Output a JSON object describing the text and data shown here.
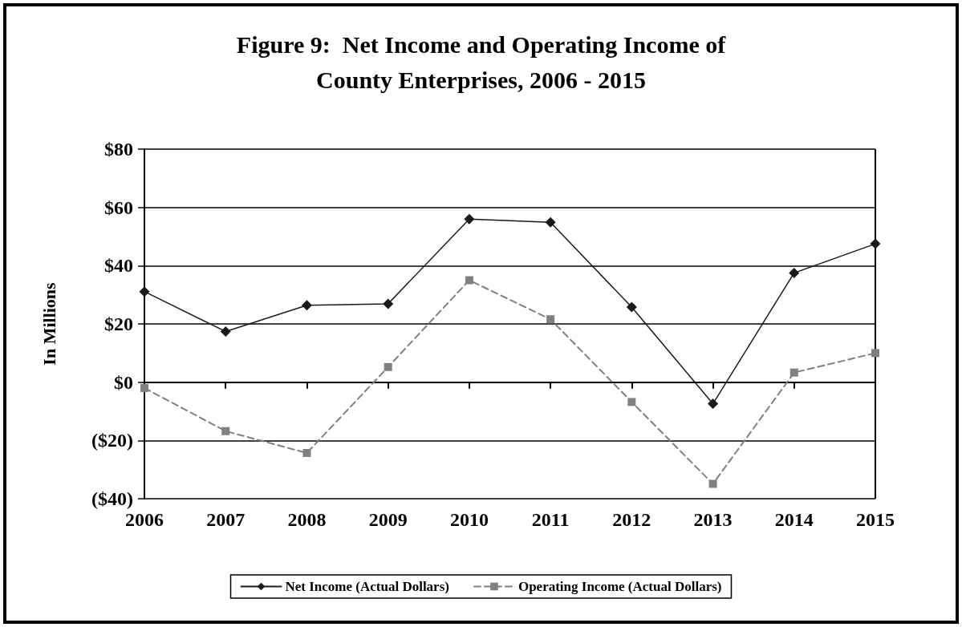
{
  "chart_data": {
    "type": "line",
    "title": "Figure 9:  Net Income and Operating Income of\nCounty Enterprises, 2006 - 2015",
    "ylabel": "In Millions",
    "categories": [
      "2006",
      "2007",
      "2008",
      "2009",
      "2010",
      "2011",
      "2012",
      "2013",
      "2014",
      "2015"
    ],
    "series": [
      {
        "name": "Net Income (Actual Dollars)",
        "color": "#1a1a1a",
        "marker": "diamond",
        "line_style": "solid",
        "values": [
          31.1,
          17.4,
          26.4,
          26.9,
          56,
          54.9,
          25.8,
          -7.4,
          37.5,
          47.5
        ]
      },
      {
        "name": "Operating Income (Actual Dollars)",
        "color": "#808080",
        "marker": "square",
        "line_style": "dashed",
        "values": [
          -2,
          -16.8,
          -24.3,
          5.2,
          35,
          21.6,
          -6.8,
          -34.9,
          3.3,
          10
        ]
      }
    ],
    "ylim": [
      -40,
      80
    ],
    "yticks": [
      {
        "value": -40,
        "label": "($40)"
      },
      {
        "value": -20,
        "label": "($20)"
      },
      {
        "value": 0,
        "label": "$0"
      },
      {
        "value": 20,
        "label": "$20"
      },
      {
        "value": 40,
        "label": "$40"
      },
      {
        "value": 60,
        "label": "$60"
      },
      {
        "value": 80,
        "label": "$80"
      }
    ],
    "grid": "y",
    "legend": "bottom"
  }
}
